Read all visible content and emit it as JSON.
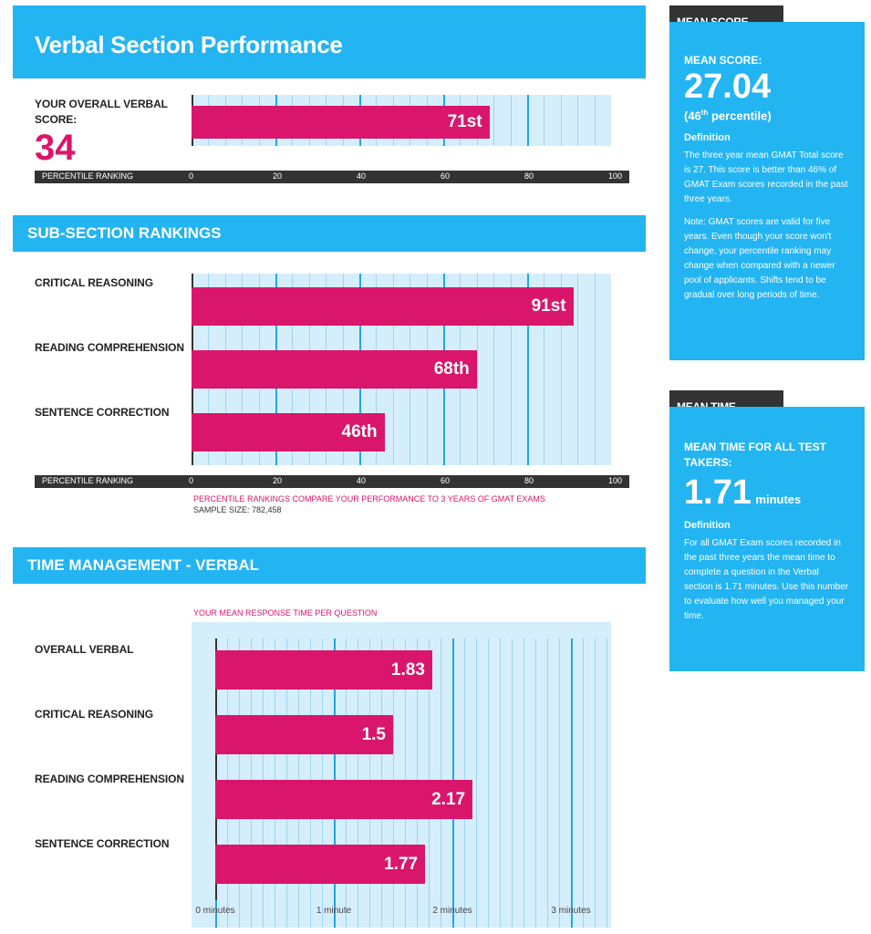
{
  "main_title": "Verbal Section Performance",
  "overall": {
    "label_line1": "YOUR OVERALL VERBAL",
    "label_line2": "SCORE:",
    "score": "34",
    "percentile_label": "71st"
  },
  "percentile_strip": {
    "label": "PERCENTILE RANKING",
    "ticks": [
      "0",
      "20",
      "40",
      "60",
      "80",
      "100"
    ]
  },
  "subsection_title": "SUB-SECTION RANKINGS",
  "subsections": [
    {
      "label": "CRITICAL REASONING",
      "value_label": "91st"
    },
    {
      "label": "READING COMPREHENSION",
      "value_label": "68th"
    },
    {
      "label": "SENTENCE CORRECTION",
      "value_label": "46th"
    }
  ],
  "notes": {
    "compare": "PERCENTILE RANKINGS COMPARE YOUR PERFORMANCE TO 3 YEARS OF GMAT EXAMS",
    "sample": "SAMPLE SIZE: 782,458",
    "time_caption": "YOUR MEAN RESPONSE TIME PER QUESTION"
  },
  "time_title": "TIME MANAGEMENT - VERBAL",
  "time_rows": [
    {
      "label": "OVERALL VERBAL",
      "value_label": "1.83"
    },
    {
      "label": "CRITICAL REASONING",
      "value_label": "1.5"
    },
    {
      "label": "READING COMPREHENSION",
      "value_label": "2.17"
    },
    {
      "label": "SENTENCE CORRECTION",
      "value_label": "1.77"
    }
  ],
  "time_ticks": [
    "0 minutes",
    "1 minute",
    "2 minutes",
    "3 minutes"
  ],
  "mean_score_card": {
    "tab": "MEAN SCORE",
    "heading": "MEAN SCORE:",
    "value": "27.04",
    "pct_prefix": "(46",
    "pct_sup": "th",
    "pct_suffix": " percentile)",
    "definition_title": "Definition",
    "para1": "The three year mean GMAT Total score is 27. This score is better than 46% of GMAT Exam scores recorded in the past three years.",
    "para2": "Note: GMAT scores are valid for five years. Even though your score won't change, your percentile ranking may change when compared with a newer pool of applicants. Shifts tend to be gradual over long periods of time."
  },
  "mean_time_card": {
    "tab": "MEAN TIME",
    "heading": "MEAN TIME FOR ALL TEST TAKERS:",
    "value": "1.71",
    "unit": "minutes",
    "definition_title": "Definition",
    "para1": "For all GMAT Exam scores recorded in the past three years the mean time to complete a question in the Verbal section is 1.71 minutes. Use this number to evaluate how well you managed your time."
  },
  "colors": {
    "accent_blue": "#23b4f2",
    "bar_pink": "#d9166b",
    "plot_bg": "#d5eefb",
    "dark": "#333333"
  },
  "chart_data": [
    {
      "type": "bar",
      "orientation": "horizontal",
      "categories": [
        "YOUR OVERALL VERBAL SCORE"
      ],
      "values": [
        71
      ],
      "xlabel": "PERCENTILE RANKING",
      "xlim": [
        0,
        100
      ]
    },
    {
      "type": "bar",
      "orientation": "horizontal",
      "title": "SUB-SECTION RANKINGS",
      "categories": [
        "CRITICAL REASONING",
        "READING COMPREHENSION",
        "SENTENCE CORRECTION"
      ],
      "values": [
        91,
        68,
        46
      ],
      "xlabel": "PERCENTILE RANKING",
      "xlim": [
        0,
        100
      ]
    },
    {
      "type": "bar",
      "orientation": "horizontal",
      "title": "TIME MANAGEMENT - VERBAL",
      "categories": [
        "OVERALL VERBAL",
        "CRITICAL REASONING",
        "READING COMPREHENSION",
        "SENTENCE CORRECTION"
      ],
      "values": [
        1.83,
        1.5,
        2.17,
        1.77
      ],
      "xlim": [
        0,
        3.3
      ]
    }
  ]
}
